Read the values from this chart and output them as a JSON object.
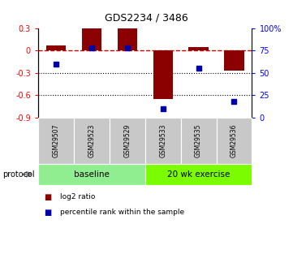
{
  "title": "GDS2234 / 3486",
  "samples": [
    "GSM29507",
    "GSM29523",
    "GSM29529",
    "GSM29533",
    "GSM29535",
    "GSM29536"
  ],
  "log2_ratios": [
    0.07,
    0.29,
    0.29,
    -0.65,
    0.05,
    -0.27
  ],
  "percentile_ranks": [
    60,
    78,
    78,
    10,
    55,
    18
  ],
  "groups": [
    "baseline",
    "baseline",
    "baseline",
    "20 wk exercise",
    "20 wk exercise",
    "20 wk exercise"
  ],
  "ylim_left": [
    -0.9,
    0.3
  ],
  "ylim_right": [
    0,
    100
  ],
  "yticks_left": [
    -0.9,
    -0.6,
    -0.3,
    0.0,
    0.3
  ],
  "yticks_right": [
    0,
    25,
    50,
    75,
    100
  ],
  "ytick_labels_left": [
    "-0.9",
    "-0.6",
    "-0.3",
    "0",
    "0.3"
  ],
  "ytick_labels_right": [
    "0",
    "25",
    "50",
    "75",
    "100%"
  ],
  "bar_color": "#8B0000",
  "square_color": "#0000AA",
  "hline_color": "#CC0000",
  "dotted_line_color": "#000000",
  "baseline_color": "#90EE90",
  "exercise_color": "#7CFC00",
  "sample_box_color": "#C8C8C8",
  "protocol_label": "protocol",
  "group_labels": [
    "baseline",
    "20 wk exercise"
  ],
  "legend_items": [
    "log2 ratio",
    "percentile rank within the sample"
  ],
  "bar_width": 0.55
}
